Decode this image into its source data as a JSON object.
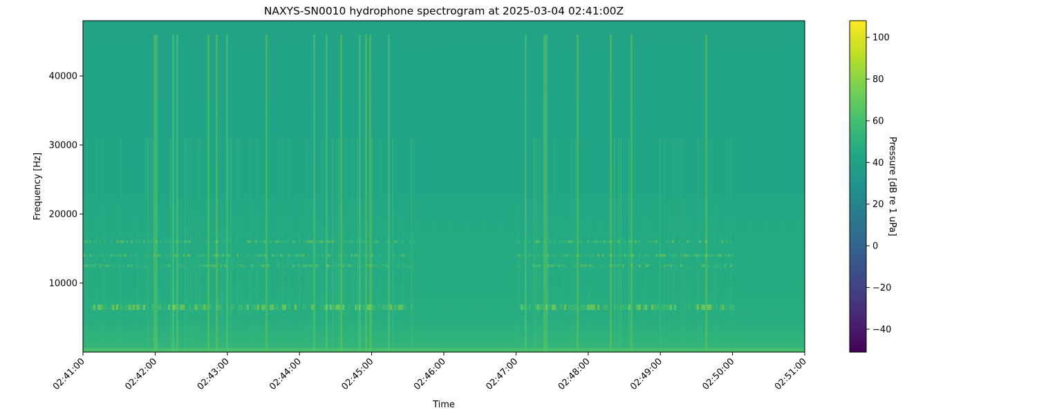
{
  "chart_data": {
    "type": "heatmap",
    "title": "NAXYS-SN0010 hydrophone spectrogram at 2025-03-04 02:41:00Z",
    "xlabel": "Time",
    "ylabel": "Frequency [Hz]",
    "x_ticks": [
      "02:41:00",
      "02:42:00",
      "02:43:00",
      "02:44:00",
      "02:45:00",
      "02:46:00",
      "02:47:00",
      "02:48:00",
      "02:49:00",
      "02:50:00",
      "02:51:00"
    ],
    "xlim": [
      "02:41:00",
      "02:51:00"
    ],
    "y_ticks": [
      10000,
      20000,
      30000,
      40000
    ],
    "ylim": [
      0,
      48000
    ],
    "colormap": "viridis",
    "colorbar": {
      "label": "Pressure [dB re 1 uPa]",
      "ticks": [
        100,
        80,
        60,
        40,
        20,
        0,
        -20,
        -40
      ],
      "range": [
        -51,
        108
      ]
    },
    "background_level_db": 50,
    "tonal_bands_hz": [
      6500,
      12500,
      14000,
      16000
    ],
    "grid": false
  }
}
